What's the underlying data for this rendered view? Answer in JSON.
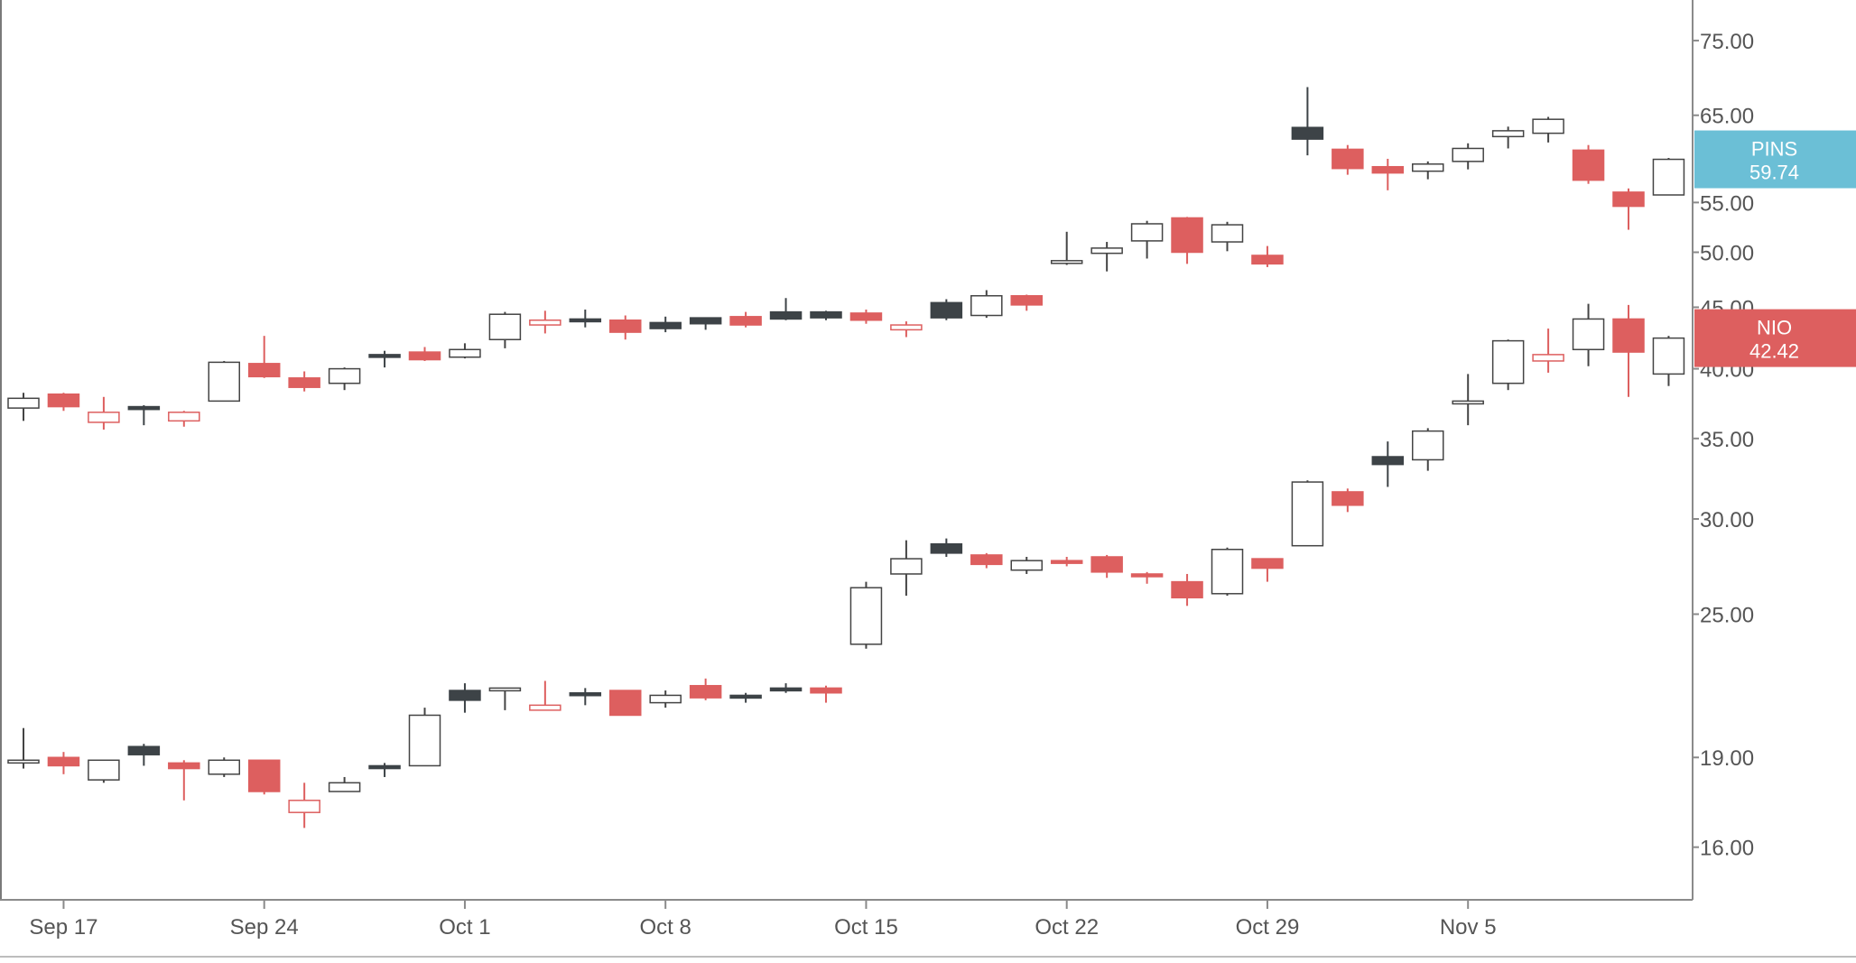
{
  "chart_data": {
    "type": "candlestick",
    "x_ticks": [
      "Sep 17",
      "Sep 24",
      "Oct 1",
      "Oct 8",
      "Oct 15",
      "Oct 22",
      "Oct 29",
      "Nov 5"
    ],
    "y_scale": "log",
    "ylim": [
      14.2,
      80
    ],
    "y_ticks": [
      "75.00",
      "65.00",
      "55.00",
      "50.00",
      "45.00",
      "40.00",
      "35.00",
      "30.00",
      "25.00",
      "19.00",
      "16.00"
    ],
    "colors": {
      "up": "#ffffff",
      "down": "#dd5f5f",
      "dark": "#3d4347",
      "outline": "#444444",
      "axis": "#555555",
      "pins_label": "#6bbfd6",
      "nio_label": "#dd5f5f"
    },
    "series": [
      {
        "name": "PINS",
        "last_label": "59.74",
        "candles": [
          {
            "date": "Sep 16",
            "open": 37.1,
            "high": 38.2,
            "low": 36.2,
            "close": 37.8,
            "color": "white"
          },
          {
            "date": "Sep 17",
            "open": 38.1,
            "high": 38.2,
            "low": 36.9,
            "close": 37.2,
            "color": "red"
          },
          {
            "date": "Sep 18",
            "open": 36.1,
            "high": 37.9,
            "low": 35.6,
            "close": 36.8,
            "color": "red-hollow"
          },
          {
            "date": "Sep 19",
            "open": 37.0,
            "high": 37.3,
            "low": 35.9,
            "close": 37.2,
            "color": "dark"
          },
          {
            "date": "Sep 20",
            "open": 36.2,
            "high": 36.9,
            "low": 35.8,
            "close": 36.8,
            "color": "red-hollow"
          },
          {
            "date": "Sep 23",
            "open": 37.6,
            "high": 40.6,
            "low": 37.6,
            "close": 40.5,
            "color": "white"
          },
          {
            "date": "Sep 24",
            "open": 40.4,
            "high": 42.6,
            "low": 39.3,
            "close": 39.4,
            "color": "red"
          },
          {
            "date": "Sep 25",
            "open": 39.3,
            "high": 39.8,
            "low": 38.3,
            "close": 38.6,
            "color": "red"
          },
          {
            "date": "Sep 26",
            "open": 38.9,
            "high": 40.1,
            "low": 38.4,
            "close": 40.0,
            "color": "white"
          },
          {
            "date": "Sep 27",
            "open": 41.0,
            "high": 41.4,
            "low": 40.1,
            "close": 41.1,
            "color": "dark"
          },
          {
            "date": "Sep 30",
            "open": 41.3,
            "high": 41.7,
            "low": 40.6,
            "close": 40.7,
            "color": "red"
          },
          {
            "date": "Oct 1",
            "open": 40.9,
            "high": 42.0,
            "low": 40.8,
            "close": 41.5,
            "color": "white"
          },
          {
            "date": "Oct 2",
            "open": 42.3,
            "high": 44.6,
            "low": 41.6,
            "close": 44.4,
            "color": "white"
          },
          {
            "date": "Oct 3",
            "open": 43.5,
            "high": 44.7,
            "low": 42.8,
            "close": 43.9,
            "color": "red-hollow"
          },
          {
            "date": "Oct 4",
            "open": 43.9,
            "high": 44.8,
            "low": 43.3,
            "close": 44.0,
            "color": "dark"
          },
          {
            "date": "Oct 7",
            "open": 43.9,
            "high": 44.3,
            "low": 42.3,
            "close": 42.9,
            "color": "red"
          },
          {
            "date": "Oct 8",
            "open": 43.2,
            "high": 44.2,
            "low": 42.9,
            "close": 43.7,
            "color": "dark"
          },
          {
            "date": "Oct 9",
            "open": 43.6,
            "high": 44.1,
            "low": 43.1,
            "close": 44.1,
            "color": "dark"
          },
          {
            "date": "Oct 10",
            "open": 44.2,
            "high": 44.6,
            "low": 43.3,
            "close": 43.5,
            "color": "red"
          },
          {
            "date": "Oct 11",
            "open": 44.0,
            "high": 45.8,
            "low": 43.9,
            "close": 44.6,
            "color": "dark"
          },
          {
            "date": "Oct 14",
            "open": 44.1,
            "high": 44.7,
            "low": 43.9,
            "close": 44.6,
            "color": "dark"
          },
          {
            "date": "Oct 15",
            "open": 44.5,
            "high": 44.8,
            "low": 43.6,
            "close": 43.9,
            "color": "red"
          },
          {
            "date": "Oct 16",
            "open": 43.1,
            "high": 43.8,
            "low": 42.5,
            "close": 43.5,
            "color": "red-hollow"
          },
          {
            "date": "Oct 17",
            "open": 44.1,
            "high": 45.7,
            "low": 43.9,
            "close": 45.4,
            "color": "dark"
          },
          {
            "date": "Oct 18",
            "open": 44.3,
            "high": 46.5,
            "low": 44.1,
            "close": 46.0,
            "color": "white"
          },
          {
            "date": "Oct 21",
            "open": 46.0,
            "high": 46.1,
            "low": 44.7,
            "close": 45.2,
            "color": "red"
          },
          {
            "date": "Oct 22",
            "open": 49.1,
            "high": 52.0,
            "low": 48.8,
            "close": 49.2,
            "color": "white"
          },
          {
            "date": "Oct 23",
            "open": 49.9,
            "high": 51.0,
            "low": 48.2,
            "close": 50.4,
            "color": "white"
          },
          {
            "date": "Oct 24",
            "open": 51.1,
            "high": 53.1,
            "low": 49.4,
            "close": 52.8,
            "color": "white"
          },
          {
            "date": "Oct 25",
            "open": 53.4,
            "high": 53.5,
            "low": 48.9,
            "close": 50.0,
            "color": "red"
          },
          {
            "date": "Oct 28",
            "open": 52.7,
            "high": 53.0,
            "low": 50.1,
            "close": 51.0,
            "color": "white"
          },
          {
            "date": "Oct 29",
            "open": 49.7,
            "high": 50.6,
            "low": 48.6,
            "close": 48.9,
            "color": "red"
          },
          {
            "date": "Oct 30",
            "open": 62.1,
            "high": 68.6,
            "low": 60.2,
            "close": 63.5,
            "color": "dark"
          },
          {
            "date": "Oct 31",
            "open": 60.9,
            "high": 61.4,
            "low": 58.0,
            "close": 58.7,
            "color": "red"
          },
          {
            "date": "Nov 1",
            "open": 58.9,
            "high": 59.8,
            "low": 56.3,
            "close": 58.2,
            "color": "red"
          },
          {
            "date": "Nov 4",
            "open": 58.4,
            "high": 59.5,
            "low": 57.5,
            "close": 59.2,
            "color": "white"
          },
          {
            "date": "Nov 5",
            "open": 59.5,
            "high": 61.6,
            "low": 58.6,
            "close": 61.0,
            "color": "white"
          },
          {
            "date": "Nov 6",
            "open": 62.4,
            "high": 63.6,
            "low": 61.0,
            "close": 63.1,
            "color": "white"
          },
          {
            "date": "Nov 7",
            "open": 62.8,
            "high": 64.8,
            "low": 61.7,
            "close": 64.5,
            "color": "white"
          },
          {
            "date": "Nov 8",
            "open": 60.8,
            "high": 61.4,
            "low": 57.0,
            "close": 57.4,
            "color": "red"
          },
          {
            "date": "Nov 11",
            "open": 56.1,
            "high": 56.5,
            "low": 52.2,
            "close": 54.6,
            "color": "red"
          },
          {
            "date": "Nov 12",
            "open": 55.8,
            "high": 59.9,
            "low": 55.8,
            "close": 59.74,
            "color": "white"
          }
        ]
      },
      {
        "name": "NIO",
        "last_label": "42.42",
        "candles": [
          {
            "date": "Sep 16",
            "open": 18.8,
            "high": 20.1,
            "low": 18.6,
            "close": 18.9,
            "color": "white"
          },
          {
            "date": "Sep 17",
            "open": 19.0,
            "high": 19.2,
            "low": 18.4,
            "close": 18.7,
            "color": "red"
          },
          {
            "date": "Sep 18",
            "open": 18.2,
            "high": 18.9,
            "low": 18.1,
            "close": 18.9,
            "color": "white"
          },
          {
            "date": "Sep 19",
            "open": 19.1,
            "high": 19.5,
            "low": 18.7,
            "close": 19.4,
            "color": "dark"
          },
          {
            "date": "Sep 20",
            "open": 18.8,
            "high": 18.9,
            "low": 17.5,
            "close": 18.6,
            "color": "red"
          },
          {
            "date": "Sep 23",
            "open": 18.4,
            "high": 19.0,
            "low": 18.3,
            "close": 18.9,
            "color": "white"
          },
          {
            "date": "Sep 24",
            "open": 18.9,
            "high": 18.9,
            "low": 17.7,
            "close": 17.8,
            "color": "red"
          },
          {
            "date": "Sep 25",
            "open": 17.1,
            "high": 18.1,
            "low": 16.6,
            "close": 17.5,
            "color": "red-hollow"
          },
          {
            "date": "Sep 26",
            "open": 17.8,
            "high": 18.3,
            "low": 17.8,
            "close": 18.1,
            "color": "white"
          },
          {
            "date": "Sep 27",
            "open": 18.6,
            "high": 18.8,
            "low": 18.3,
            "close": 18.7,
            "color": "dark"
          },
          {
            "date": "Sep 30",
            "open": 18.7,
            "high": 20.9,
            "low": 18.7,
            "close": 20.6,
            "color": "white"
          },
          {
            "date": "Oct 1",
            "open": 21.2,
            "high": 21.9,
            "low": 20.7,
            "close": 21.6,
            "color": "dark"
          },
          {
            "date": "Oct 2",
            "open": 21.6,
            "high": 21.7,
            "low": 20.8,
            "close": 21.7,
            "color": "white"
          },
          {
            "date": "Oct 3",
            "open": 20.8,
            "high": 22.0,
            "low": 20.8,
            "close": 21.0,
            "color": "red-hollow"
          },
          {
            "date": "Oct 4",
            "open": 21.4,
            "high": 21.7,
            "low": 21.0,
            "close": 21.5,
            "color": "dark"
          },
          {
            "date": "Oct 7",
            "open": 21.6,
            "high": 21.6,
            "low": 20.6,
            "close": 20.6,
            "color": "red"
          },
          {
            "date": "Oct 8",
            "open": 21.1,
            "high": 21.6,
            "low": 20.9,
            "close": 21.4,
            "color": "white"
          },
          {
            "date": "Oct 9",
            "open": 21.8,
            "high": 22.1,
            "low": 21.2,
            "close": 21.3,
            "color": "red"
          },
          {
            "date": "Oct 10",
            "open": 21.3,
            "high": 21.5,
            "low": 21.1,
            "close": 21.4,
            "color": "dark"
          },
          {
            "date": "Oct 11",
            "open": 21.7,
            "high": 21.9,
            "low": 21.5,
            "close": 21.7,
            "color": "dark"
          },
          {
            "date": "Oct 14",
            "open": 21.7,
            "high": 21.8,
            "low": 21.1,
            "close": 21.5,
            "color": "red"
          },
          {
            "date": "Oct 15",
            "open": 23.6,
            "high": 26.6,
            "low": 23.4,
            "close": 26.3,
            "color": "white"
          },
          {
            "date": "Oct 16",
            "open": 27.0,
            "high": 28.8,
            "low": 25.9,
            "close": 27.8,
            "color": "white"
          },
          {
            "date": "Oct 17",
            "open": 28.6,
            "high": 28.9,
            "low": 27.9,
            "close": 28.1,
            "color": "dark"
          },
          {
            "date": "Oct 18",
            "open": 28.0,
            "high": 28.1,
            "low": 27.3,
            "close": 27.5,
            "color": "red"
          },
          {
            "date": "Oct 21",
            "open": 27.2,
            "high": 27.9,
            "low": 27.0,
            "close": 27.7,
            "color": "white"
          },
          {
            "date": "Oct 22",
            "open": 27.7,
            "high": 27.9,
            "low": 27.4,
            "close": 27.7,
            "color": "red"
          },
          {
            "date": "Oct 23",
            "open": 27.9,
            "high": 28.0,
            "low": 26.8,
            "close": 27.1,
            "color": "red"
          },
          {
            "date": "Oct 24",
            "open": 27.0,
            "high": 27.1,
            "low": 26.5,
            "close": 26.9,
            "color": "red"
          },
          {
            "date": "Oct 25",
            "open": 26.6,
            "high": 27.0,
            "low": 25.4,
            "close": 25.8,
            "color": "red"
          },
          {
            "date": "Oct 28",
            "open": 26.0,
            "high": 28.4,
            "low": 25.9,
            "close": 28.3,
            "color": "white"
          },
          {
            "date": "Oct 29",
            "open": 27.8,
            "high": 27.8,
            "low": 26.6,
            "close": 27.3,
            "color": "red"
          },
          {
            "date": "Oct 30",
            "open": 28.5,
            "high": 32.3,
            "low": 28.5,
            "close": 32.2,
            "color": "white"
          },
          {
            "date": "Oct 31",
            "open": 31.6,
            "high": 31.8,
            "low": 30.4,
            "close": 30.8,
            "color": "red"
          },
          {
            "date": "Nov 1",
            "open": 33.3,
            "high": 34.8,
            "low": 31.9,
            "close": 33.8,
            "color": "dark"
          },
          {
            "date": "Nov 4",
            "open": 33.6,
            "high": 35.7,
            "low": 32.9,
            "close": 35.5,
            "color": "white"
          },
          {
            "date": "Nov 5",
            "open": 37.4,
            "high": 39.6,
            "low": 35.9,
            "close": 37.6,
            "color": "white"
          },
          {
            "date": "Nov 6",
            "open": 38.9,
            "high": 42.3,
            "low": 38.4,
            "close": 42.2,
            "color": "white"
          },
          {
            "date": "Nov 7",
            "open": 41.1,
            "high": 43.2,
            "low": 39.7,
            "close": 40.6,
            "color": "red-hollow"
          },
          {
            "date": "Nov 8",
            "open": 41.5,
            "high": 45.3,
            "low": 40.2,
            "close": 44.0,
            "color": "white"
          },
          {
            "date": "Nov 11",
            "open": 44.0,
            "high": 45.2,
            "low": 37.9,
            "close": 41.3,
            "color": "red"
          },
          {
            "date": "Nov 12",
            "open": 39.6,
            "high": 42.6,
            "low": 38.7,
            "close": 42.42,
            "color": "white"
          }
        ]
      }
    ]
  }
}
